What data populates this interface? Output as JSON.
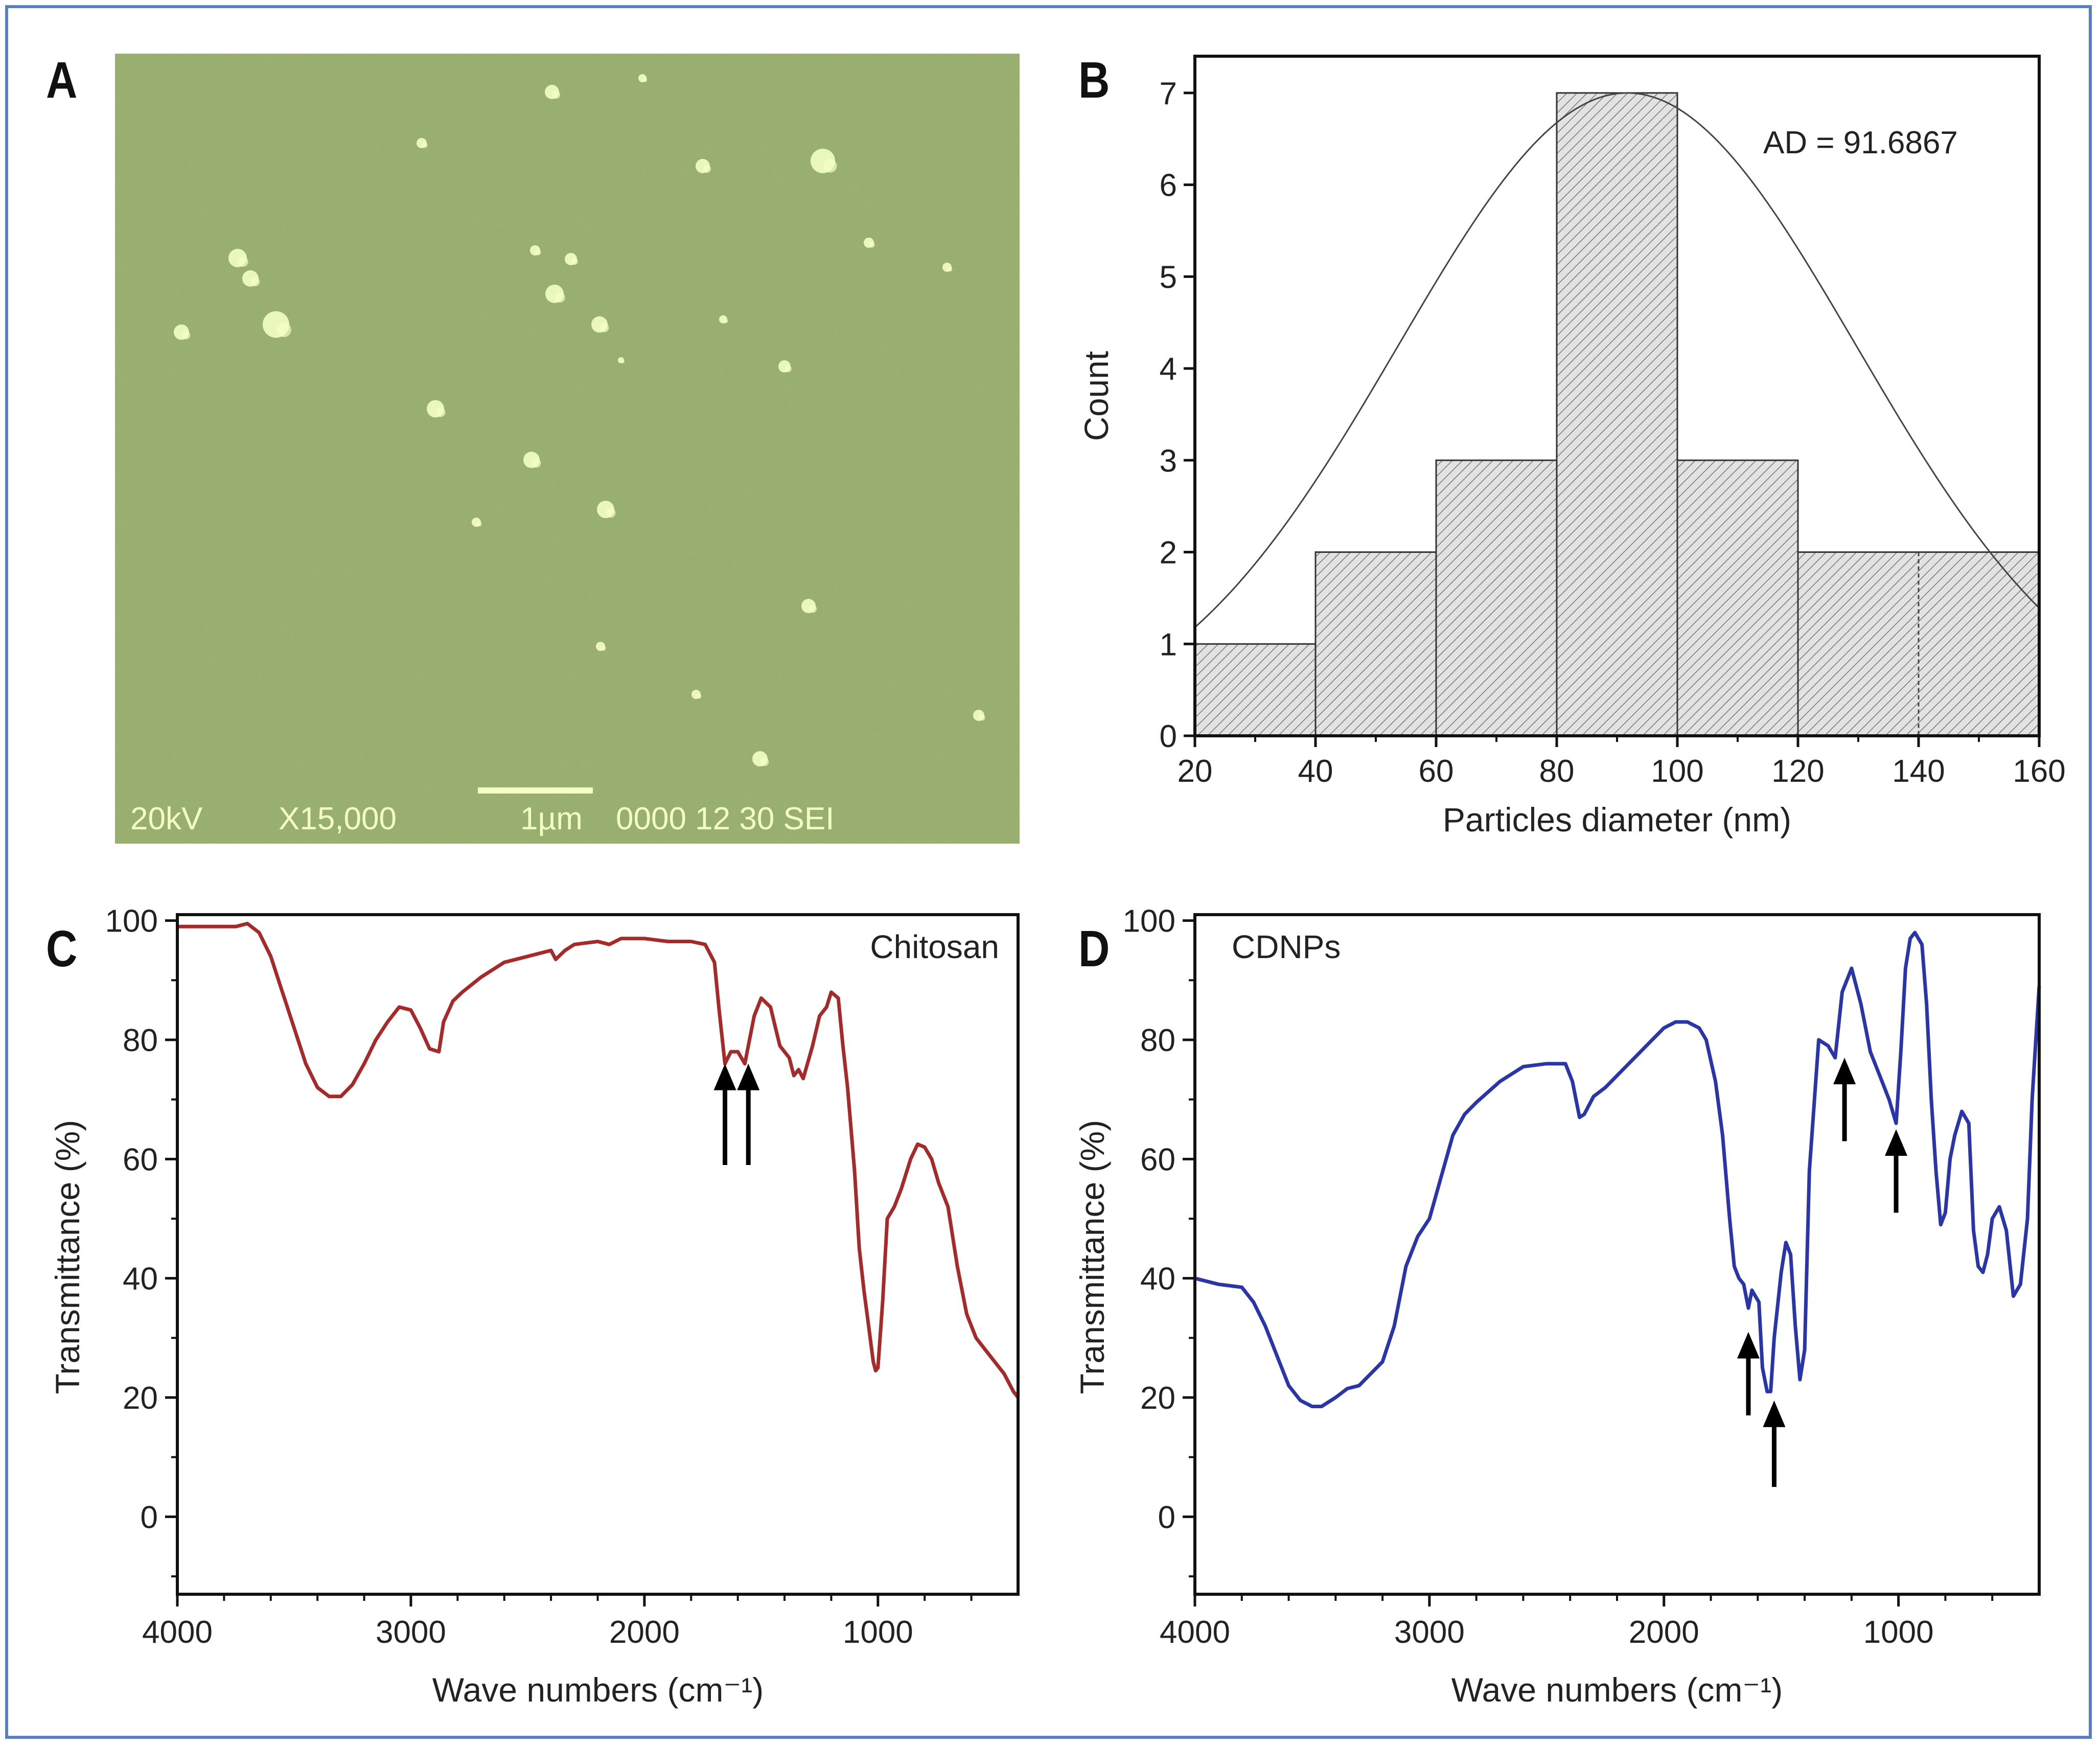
{
  "figure": {
    "border_color": "#5b7fc7",
    "panels": {
      "a": "A",
      "b": "B",
      "c": "C",
      "d": "D"
    }
  },
  "sem": {
    "caption": "20kV  X15,000  1µm 0000 12 30 SEI",
    "caption_parts": {
      "voltage": "20kV",
      "magnification": "X15,000",
      "scale": "1µm",
      "id": "0000 12 30 SEI"
    },
    "background_color": "#94ab6a",
    "particle_color": "#f3ffc4"
  },
  "chart_data": [
    {
      "panel": "B",
      "type": "bar",
      "title": "",
      "xlabel": "Particles diameter (nm)",
      "ylabel": "Count",
      "bins": [
        [
          20,
          40
        ],
        [
          40,
          60
        ],
        [
          60,
          80
        ],
        [
          80,
          100
        ],
        [
          100,
          120
        ],
        [
          120,
          160
        ]
      ],
      "values": [
        1,
        2,
        3,
        7,
        3,
        2
      ],
      "xlim": [
        20,
        160
      ],
      "ylim": [
        0,
        7.4
      ],
      "xticks": [
        20,
        40,
        60,
        80,
        100,
        120,
        140,
        160
      ],
      "yticks": [
        0,
        1,
        2,
        3,
        4,
        5,
        6,
        7
      ],
      "fit": {
        "type": "normal",
        "mean": 91.6867,
        "peak": 7.0,
        "sigma": 38
      },
      "annotation": "AD = 91.6867",
      "bar_fill": "#d8d8d8",
      "line_color": "#444444"
    },
    {
      "panel": "C",
      "type": "line",
      "title": "",
      "legend": "Chitosan",
      "xlabel": "Wave numbers (cm⁻¹)",
      "ylabel": "Transmittance (%)",
      "xlim": [
        4000,
        400
      ],
      "ylim": [
        -13,
        101
      ],
      "xticks": [
        4000,
        3000,
        2000,
        1000
      ],
      "yticks": [
        0,
        20,
        40,
        60,
        80,
        100
      ],
      "color": "#a52a2a",
      "series": {
        "name": "Chitosan",
        "x": [
          4000,
          3750,
          3700,
          3650,
          3600,
          3550,
          3500,
          3450,
          3400,
          3350,
          3300,
          3250,
          3200,
          3150,
          3100,
          3050,
          3000,
          2960,
          2920,
          2880,
          2860,
          2820,
          2780,
          2700,
          2600,
          2500,
          2400,
          2380,
          2340,
          2300,
          2200,
          2150,
          2100,
          2000,
          1900,
          1800,
          1740,
          1700,
          1680,
          1655,
          1630,
          1600,
          1570,
          1550,
          1530,
          1500,
          1460,
          1420,
          1380,
          1360,
          1340,
          1320,
          1280,
          1250,
          1220,
          1200,
          1170,
          1150,
          1130,
          1100,
          1080,
          1060,
          1040,
          1020,
          1010,
          1000,
          980,
          960,
          930,
          900,
          860,
          830,
          800,
          770,
          740,
          700,
          660,
          620,
          580,
          540,
          500,
          460,
          420,
          400
        ],
        "y": [
          99,
          99,
          99.5,
          98,
          94,
          88,
          82,
          76,
          72,
          70.5,
          70.5,
          72.5,
          76,
          80,
          83,
          85.5,
          85,
          82,
          78.5,
          78,
          83,
          86.5,
          88,
          90.5,
          93,
          94,
          95,
          93.5,
          95,
          96,
          96.5,
          96,
          97,
          97,
          96.5,
          96.5,
          96,
          93,
          85,
          76,
          78,
          78,
          76,
          80,
          84,
          87,
          85.5,
          79,
          77,
          74,
          75,
          73.5,
          79,
          84,
          85.5,
          88,
          87,
          79,
          72,
          58,
          45,
          38,
          32,
          26,
          24.5,
          25,
          36,
          50,
          52,
          55,
          60,
          62.5,
          62,
          60,
          56,
          52,
          42,
          34,
          30,
          28,
          26,
          24,
          21,
          20
        ]
      },
      "arrows": [
        {
          "x": 1655,
          "y_tip": 76,
          "y_tail": 59,
          "direction": "up"
        },
        {
          "x": 1555,
          "y_tip": 76,
          "y_tail": 59,
          "direction": "up"
        }
      ]
    },
    {
      "panel": "D",
      "type": "line",
      "title": "",
      "legend": "CDNPs",
      "xlabel": "Wave numbers (cm⁻¹)",
      "ylabel": "Transmittance (%)",
      "xlim": [
        4000,
        400
      ],
      "ylim": [
        -13,
        101
      ],
      "xticks": [
        4000,
        3000,
        2000,
        1000
      ],
      "yticks": [
        0,
        20,
        40,
        60,
        80,
        100
      ],
      "color": "#2a36a8",
      "series": {
        "name": "CDNPs",
        "x": [
          4000,
          3900,
          3800,
          3750,
          3700,
          3650,
          3600,
          3550,
          3500,
          3460,
          3400,
          3350,
          3300,
          3250,
          3200,
          3150,
          3100,
          3050,
          3000,
          2950,
          2900,
          2850,
          2800,
          2700,
          2600,
          2500,
          2420,
          2390,
          2360,
          2340,
          2300,
          2250,
          2200,
          2100,
          2000,
          1950,
          1900,
          1850,
          1820,
          1780,
          1750,
          1720,
          1700,
          1680,
          1660,
          1640,
          1625,
          1610,
          1595,
          1580,
          1560,
          1545,
          1530,
          1500,
          1480,
          1460,
          1440,
          1420,
          1400,
          1380,
          1340,
          1300,
          1270,
          1240,
          1200,
          1160,
          1120,
          1080,
          1040,
          1010,
          990,
          970,
          950,
          930,
          900,
          880,
          860,
          840,
          820,
          800,
          780,
          760,
          730,
          700,
          680,
          660,
          640,
          620,
          600,
          570,
          540,
          510,
          480,
          450,
          430,
          400
        ],
        "y": [
          40,
          39,
          38.5,
          36,
          32,
          27,
          22,
          19.5,
          18.5,
          18.5,
          20,
          21.5,
          22,
          24,
          26,
          32,
          42,
          47,
          50,
          57,
          64,
          67.5,
          69.5,
          73,
          75.5,
          76,
          76,
          73,
          67,
          67.5,
          70.5,
          72,
          74,
          78,
          82,
          83,
          83,
          82,
          80,
          73,
          64,
          50,
          42,
          40,
          39,
          35,
          38,
          37,
          36,
          25,
          21,
          21,
          30,
          41,
          46,
          44,
          32,
          23,
          28,
          58,
          80,
          79,
          77,
          88,
          92,
          86,
          78,
          74,
          70,
          66,
          78,
          92,
          97,
          98,
          96,
          86,
          70,
          58,
          49,
          51,
          60,
          64,
          68,
          66,
          48,
          42,
          41,
          44,
          50,
          52,
          48,
          37,
          39,
          50,
          70,
          89
        ]
      },
      "arrows": [
        {
          "x": 1640,
          "y_tip": 31,
          "y_tail": 17,
          "direction": "up"
        },
        {
          "x": 1530,
          "y_tip": 19.5,
          "y_tail": 5,
          "direction": "up"
        },
        {
          "x": 1230,
          "y_tip": 77,
          "y_tail": 63,
          "direction": "up"
        },
        {
          "x": 1010,
          "y_tip": 65,
          "y_tail": 51,
          "direction": "up"
        }
      ]
    }
  ]
}
